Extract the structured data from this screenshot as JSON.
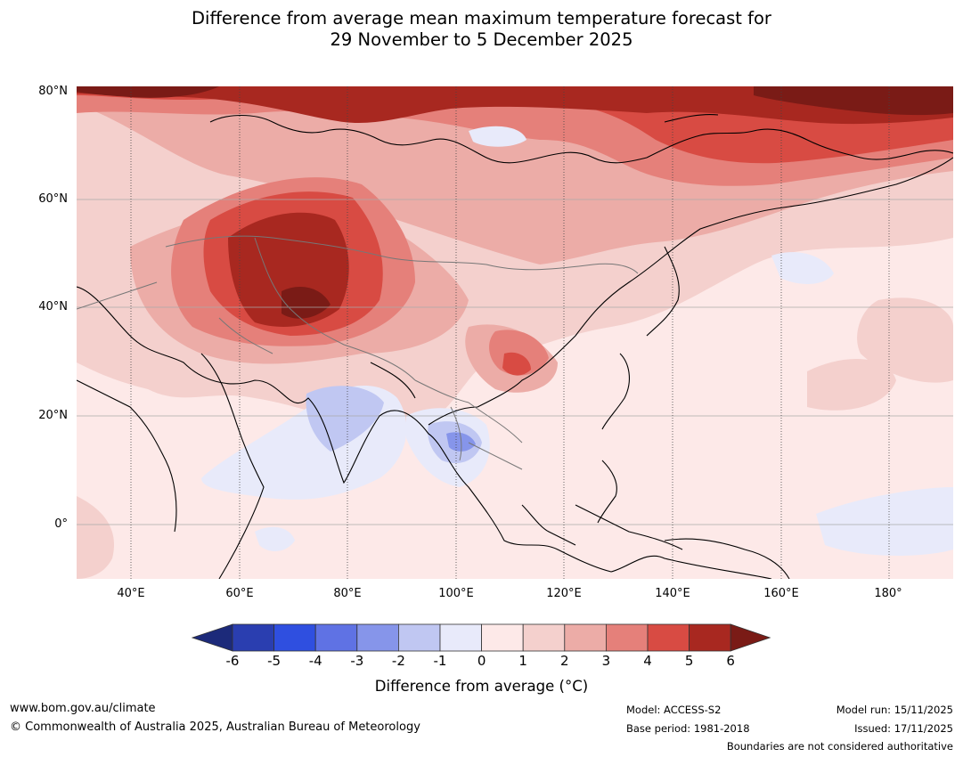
{
  "title": {
    "line1": "Difference from average mean maximum temperature forecast for",
    "line2": "29 November to 5 December 2025"
  },
  "axes": {
    "latitude_labels": [
      "80°N",
      "60°N",
      "40°N",
      "20°N",
      "0°"
    ],
    "longitude_labels": [
      "40°E",
      "60°E",
      "80°E",
      "100°E",
      "120°E",
      "140°E",
      "160°E",
      "180°"
    ]
  },
  "colorbar": {
    "ticks": [
      "-6",
      "-5",
      "-4",
      "-3",
      "-2",
      "-1",
      "0",
      "1",
      "2",
      "3",
      "4",
      "5",
      "6"
    ],
    "colors": [
      "#1c2a7a",
      "#2a3eb0",
      "#2f4fe0",
      "#5f72e4",
      "#8695ea",
      "#c0c7f2",
      "#e8eafa",
      "#fde9e8",
      "#f4d0cd",
      "#ecaca7",
      "#e5807a",
      "#d84b43",
      "#a82820",
      "#7a1b16"
    ],
    "title": "Difference from average ($^\\circ$C)",
    "title_display": "Difference from average (°C)"
  },
  "footer": {
    "website": "www.bom.gov.au/climate",
    "copyright": "© Commonwealth of Australia 2025, Australian Bureau of Meteorology",
    "model": "Model: ACCESS-S2",
    "base_period": "Base period: 1981-2018",
    "model_run": "Model run: 15/11/2025",
    "issued": "Issued: 17/11/2025",
    "disclaimer": "Boundaries are not considered authoritative"
  }
}
